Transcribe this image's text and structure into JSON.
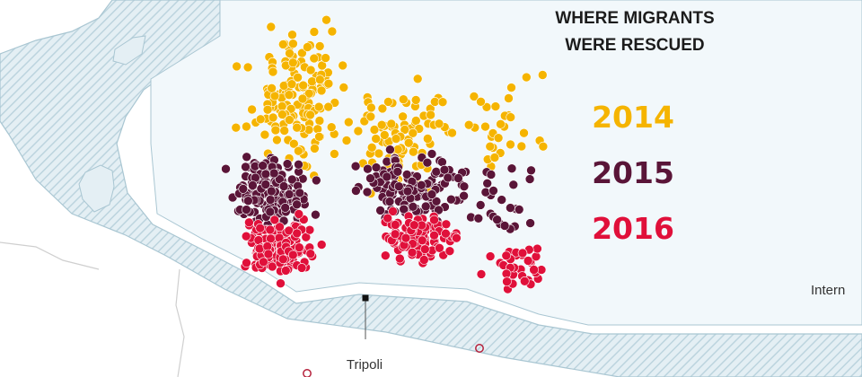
{
  "legend": {
    "title_line1": "WHERE MIGRANTS",
    "title_line2": "WERE RESCUED",
    "years": [
      {
        "label": "2014",
        "color": "#f5b400"
      },
      {
        "label": "2015",
        "color": "#5a1538"
      },
      {
        "label": "2016",
        "color": "#e0103a"
      }
    ]
  },
  "places": {
    "tripoli": "Tripoli",
    "partial_label": "Intern"
  },
  "colors": {
    "sea": "#f2f8fb",
    "land": "#ffffff",
    "coast_hatch": "#c7dce5",
    "coast_line": "#a9c6d2",
    "border": "#c8c8c8",
    "town_marker": "#b5203a"
  }
}
